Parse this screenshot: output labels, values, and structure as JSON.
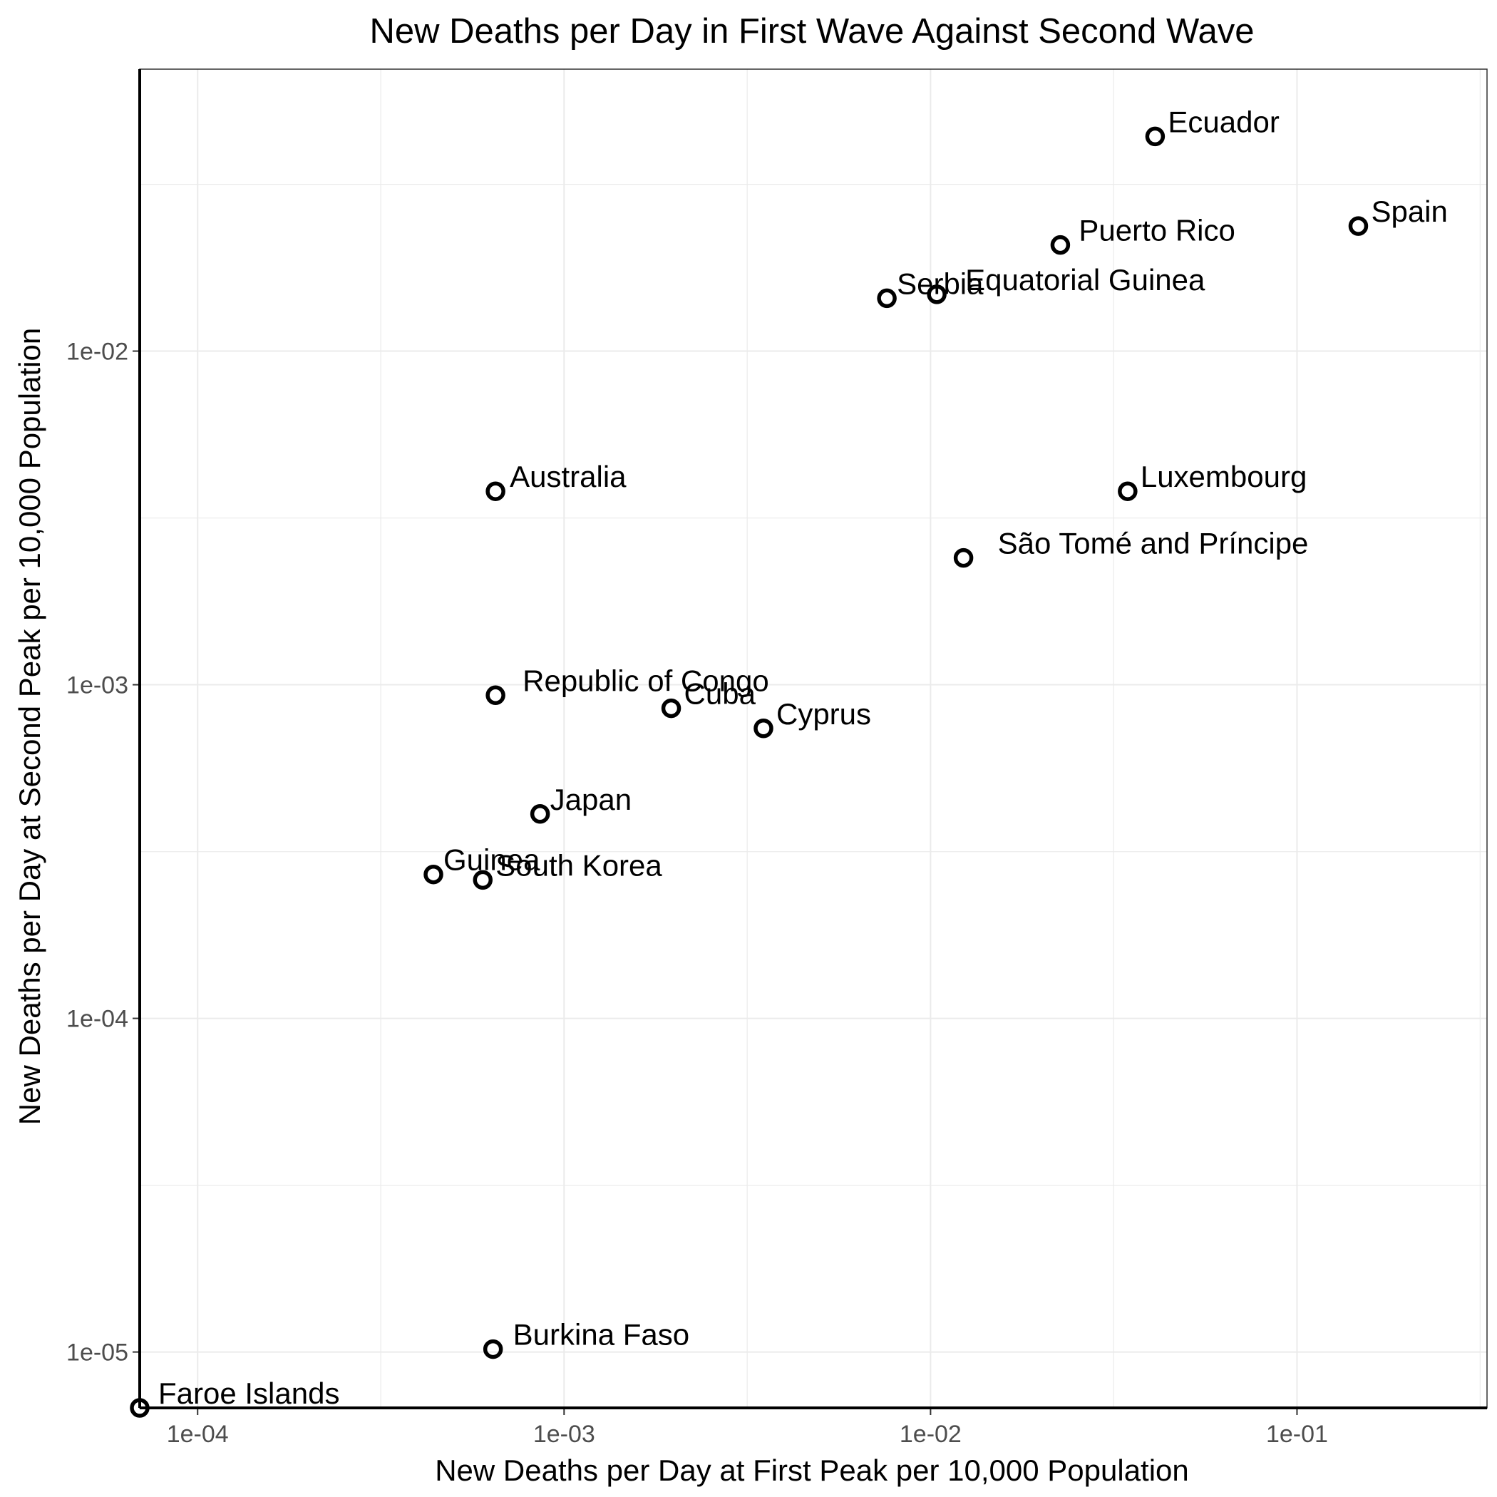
{
  "chart_data": {
    "type": "scatter",
    "title": "New Deaths per Day in First Wave Against Second Wave",
    "xlabel": "New Deaths per Day at First Peak per 10,000 Population",
    "ylabel": "New Deaths per Day at Second Peak per 10,000 Population",
    "x_scale": "log10",
    "y_scale": "log10",
    "xlim": [
      6.95e-05,
      0.33
    ],
    "ylim": [
      6.8e-06,
      0.07
    ],
    "x_ticks": [
      {
        "value": 0.0001,
        "label": "1e-04"
      },
      {
        "value": 0.001,
        "label": "1e-03"
      },
      {
        "value": 0.01,
        "label": "1e-02"
      },
      {
        "value": 0.1,
        "label": "1e-01"
      }
    ],
    "y_ticks": [
      {
        "value": 1e-05,
        "label": "1e-05"
      },
      {
        "value": 0.0001,
        "label": "1e-04"
      },
      {
        "value": 0.001,
        "label": "1e-03"
      },
      {
        "value": 0.01,
        "label": "1e-02"
      }
    ],
    "grid": true,
    "legend": "none",
    "points": [
      {
        "label": "Ecuador",
        "x": 0.041,
        "y": 0.044
      },
      {
        "label": "Spain",
        "x": 0.147,
        "y": 0.0237
      },
      {
        "label": "Puerto Rico",
        "x": 0.0226,
        "y": 0.0208
      },
      {
        "label": "Serbia",
        "x": 0.0076,
        "y": 0.0144
      },
      {
        "label": "Equatorial Guinea",
        "x": 0.0104,
        "y": 0.0148
      },
      {
        "label": "Australia",
        "x": 0.00065,
        "y": 0.0038
      },
      {
        "label": "Luxembourg",
        "x": 0.0345,
        "y": 0.0038
      },
      {
        "label": "São Tomé and Príncipe",
        "x": 0.0123,
        "y": 0.0024
      },
      {
        "label": "Republic of Congo",
        "x": 0.00065,
        "y": 0.00093
      },
      {
        "label": "Cuba",
        "x": 0.00196,
        "y": 0.00085
      },
      {
        "label": "Cyprus",
        "x": 0.0035,
        "y": 0.00074
      },
      {
        "label": "Japan",
        "x": 0.00086,
        "y": 0.00041
      },
      {
        "label": "Guinea",
        "x": 0.00044,
        "y": 0.00027
      },
      {
        "label": "South Korea",
        "x": 0.0006,
        "y": 0.00026
      },
      {
        "label": "Burkina Faso",
        "x": 0.00064,
        "y": 1.02e-05
      },
      {
        "label": "Faroe Islands",
        "x": 6.95e-05,
        "y": 6.8e-06
      }
    ]
  }
}
